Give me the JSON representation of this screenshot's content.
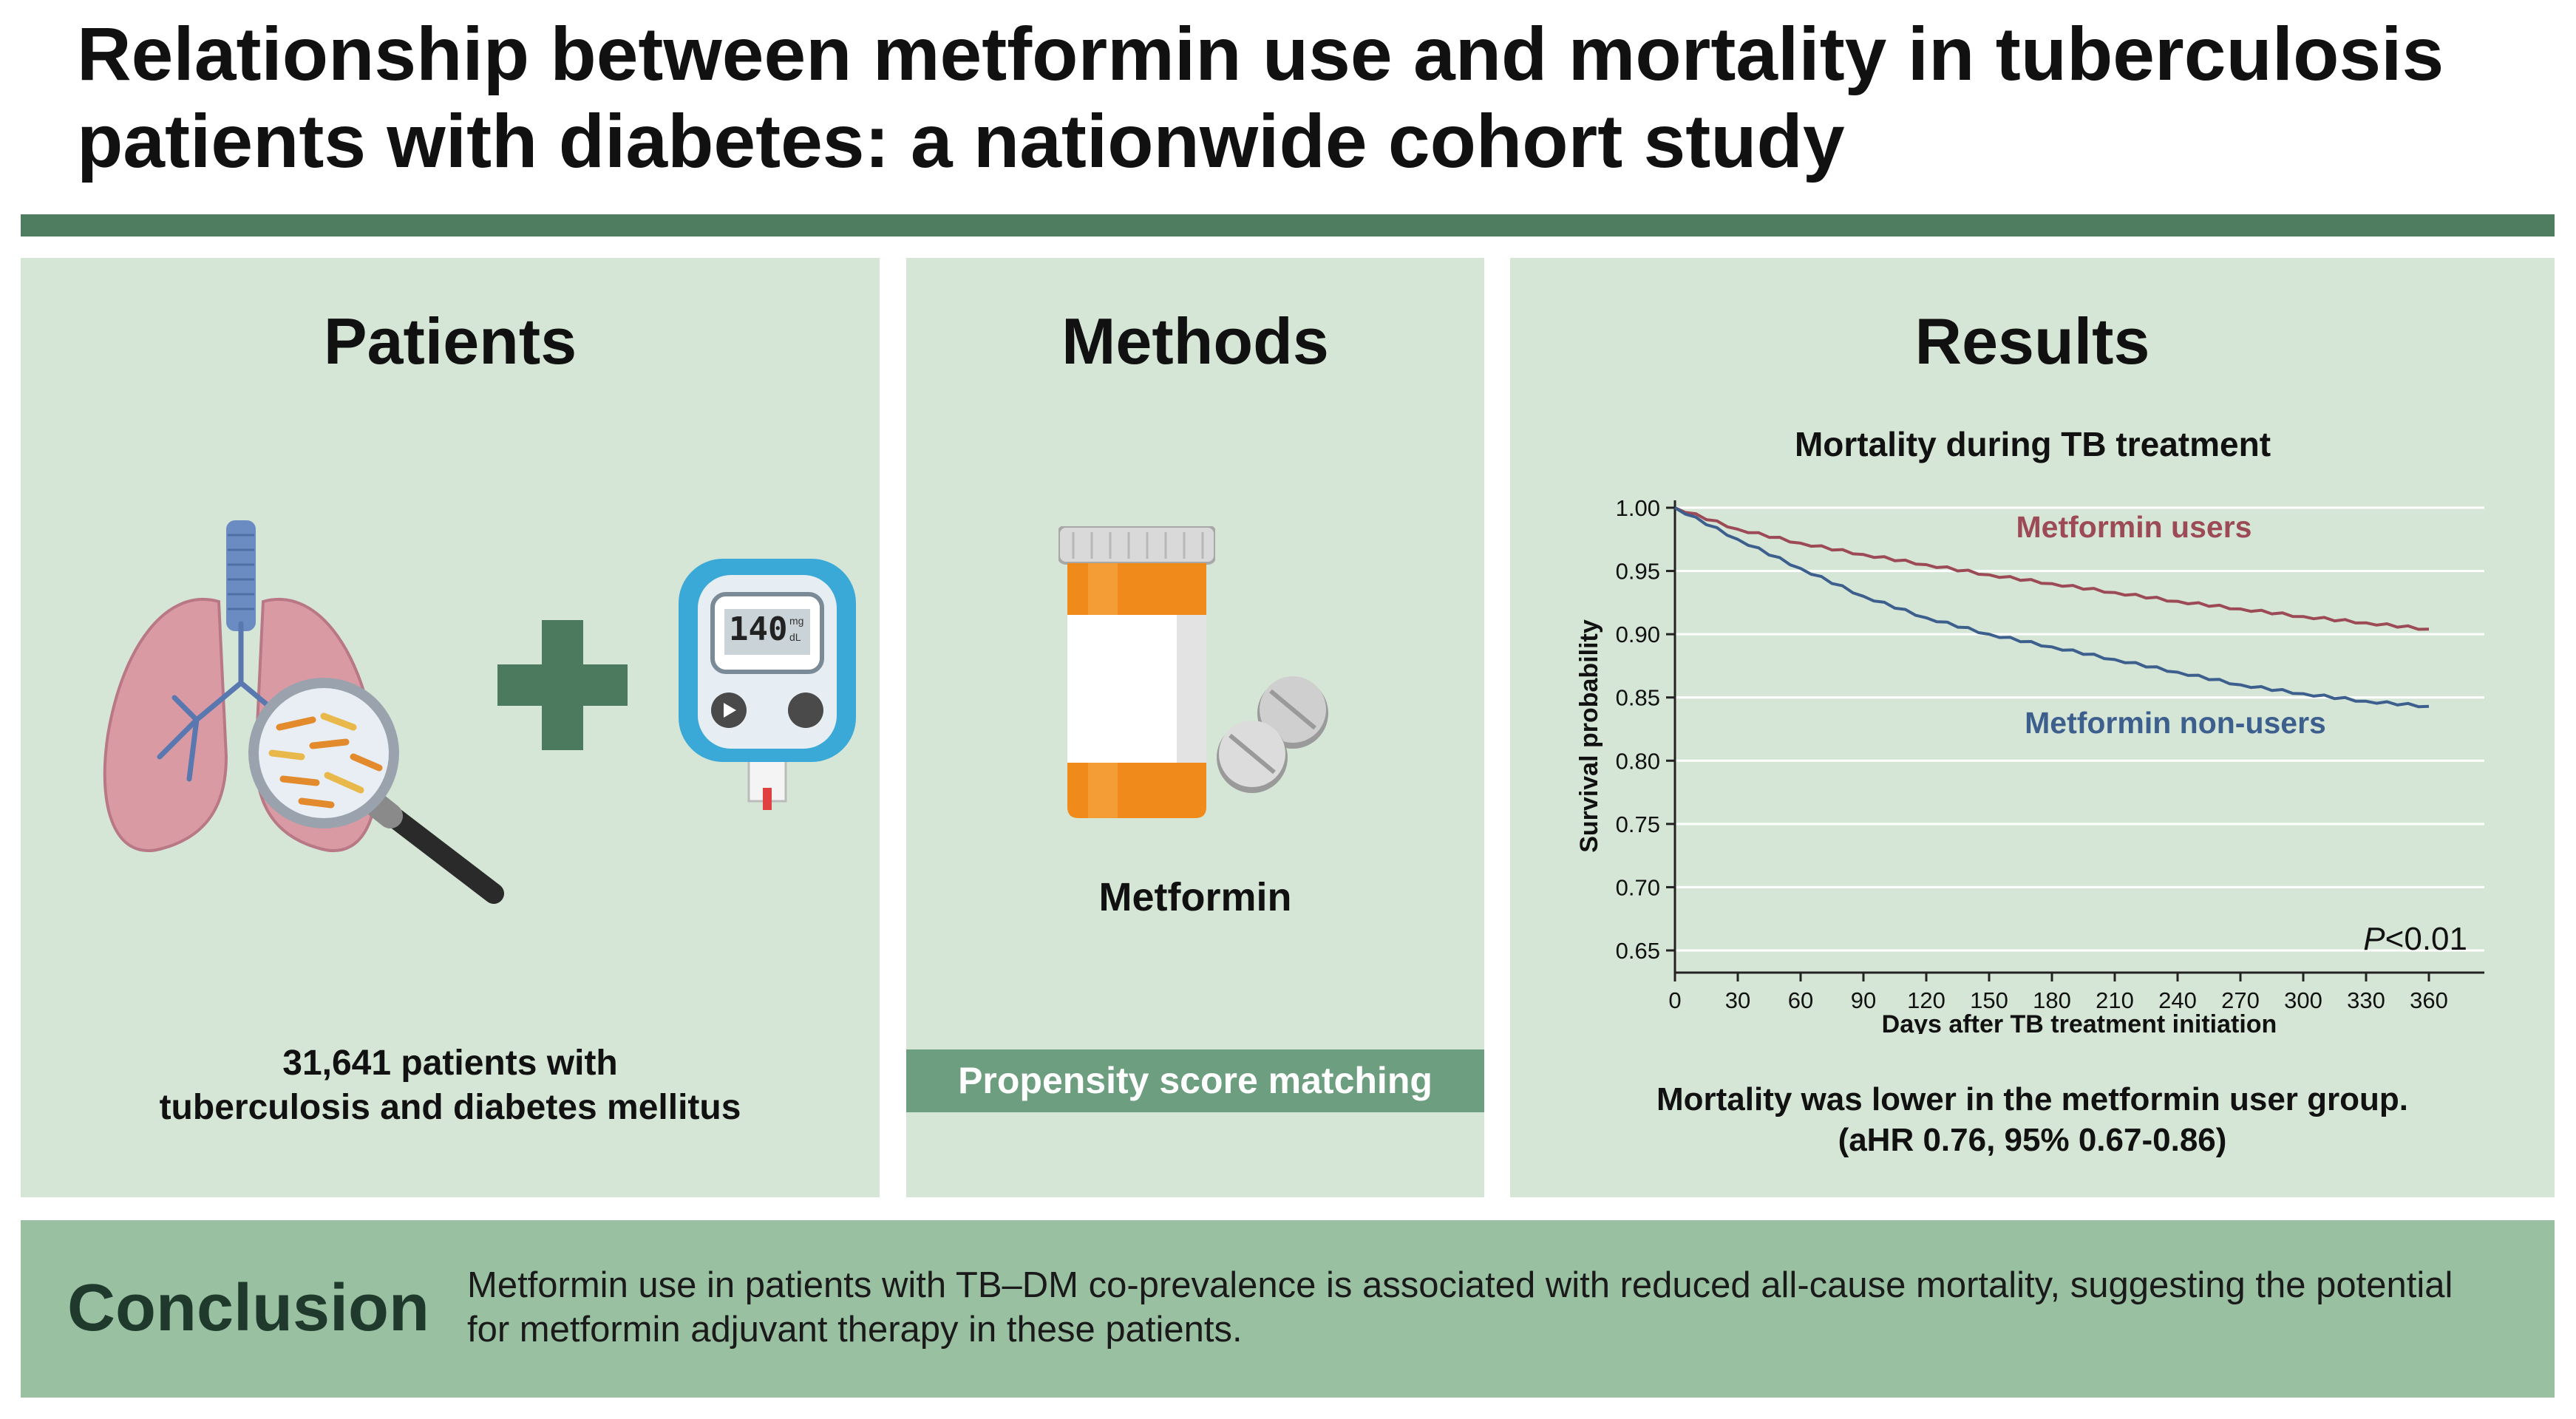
{
  "header": {
    "title_line1": "Relationship between metformin use and mortality in tuberculosis",
    "title_line2": "patients with diabetes: a nationwide cohort study"
  },
  "patients": {
    "heading": "Patients",
    "caption_line1": "31,641 patients with",
    "caption_line2": "tuberculosis and diabetes mellitus",
    "glucometer_reading": "140",
    "glucometer_unit_top": "mg",
    "glucometer_unit_bottom": "dL",
    "icons": [
      "lungs-icon",
      "magnifier-icon",
      "plus-icon",
      "glucometer-icon"
    ]
  },
  "methods": {
    "heading": "Methods",
    "drug_label": "Metformin",
    "band_label": "Propensity score matching",
    "icons": [
      "pill-bottle-icon",
      "tablet-icon"
    ]
  },
  "results": {
    "heading": "Results",
    "summary_line1": "Mortality was lower in the metformin user group.",
    "summary_line2": "(aHR 0.76, 95% 0.67-0.86)"
  },
  "chart_data": {
    "type": "line",
    "title": "Mortality during TB treatment",
    "xlabel": "Days after TB treatment initiation",
    "ylabel": "Survival probability",
    "x_ticks": [
      0,
      30,
      60,
      90,
      120,
      150,
      180,
      210,
      240,
      270,
      300,
      330,
      360
    ],
    "y_ticks": [
      "0.65",
      "0.70",
      "0.75",
      "0.80",
      "0.85",
      "0.90",
      "0.95",
      "1.00"
    ],
    "xlim": [
      0,
      360
    ],
    "ylim": [
      0.65,
      1.0
    ],
    "grid": "horizontal",
    "annotation": {
      "p_italic": "P",
      "p_rest": "<0.01"
    },
    "series": [
      {
        "name": "Metformin users",
        "color": "#9c4a55",
        "x": [
          0,
          30,
          60,
          90,
          120,
          150,
          180,
          210,
          240,
          270,
          300,
          330,
          360
        ],
        "y": [
          1.0,
          0.983,
          0.972,
          0.963,
          0.955,
          0.947,
          0.94,
          0.933,
          0.926,
          0.92,
          0.914,
          0.909,
          0.904
        ]
      },
      {
        "name": "Metformin non-users",
        "color": "#3d5f8e",
        "x": [
          0,
          30,
          60,
          90,
          120,
          150,
          180,
          210,
          240,
          270,
          300,
          330,
          360
        ],
        "y": [
          1.0,
          0.975,
          0.952,
          0.93,
          0.913,
          0.9,
          0.89,
          0.88,
          0.87,
          0.86,
          0.853,
          0.847,
          0.843
        ]
      }
    ]
  },
  "conclusion": {
    "heading": "Conclusion",
    "text_line1": "Metformin use in patients with TB–DM co-prevalence is associated with reduced all-cause mortality, suggesting the potential",
    "text_line2": "for metformin adjuvant therapy in these patients."
  },
  "colors": {
    "panel_bg": "#d6e6d6",
    "header_rule": "#4f7d5f",
    "band": "#6e9e80",
    "conclusion_bg": "#9ac0a2",
    "plus_sign": "#4b7a5e",
    "pill_bottle": "#f08a1a"
  }
}
